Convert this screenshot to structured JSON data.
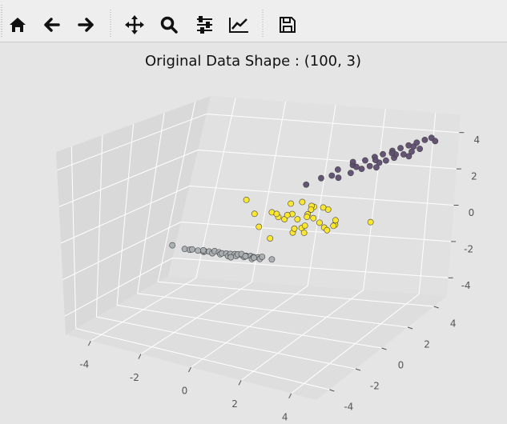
{
  "chart_data": {
    "type": "scatter3d",
    "title": "Original Data Shape : (100, 3)",
    "xlim": [
      -5,
      5
    ],
    "ylim": [
      -5,
      5
    ],
    "zlim": [
      -5,
      5
    ],
    "xticks": [
      -4,
      -2,
      0,
      2,
      4
    ],
    "yticks": [
      -4,
      -2,
      0,
      2,
      4
    ],
    "zticks": [
      -4,
      -2,
      0,
      2,
      4
    ],
    "grid": true,
    "series": [
      {
        "color": "#a9aeb1",
        "x": [
          -3.7,
          -3.2,
          -3.05,
          -2.9,
          -2.7,
          -2.55,
          -2.4,
          -2.3,
          -2.15,
          -2.05,
          -1.95,
          -1.85,
          -1.75,
          -1.65,
          -1.55,
          -1.45,
          -1.35,
          -1.25,
          -1.15,
          -1.05,
          -0.95,
          -0.85,
          -0.75,
          -0.65,
          -0.55,
          -0.45,
          -0.35,
          -0.25,
          0.1,
          -1.4,
          -1.1,
          -0.9,
          -0.6,
          -2.5
        ],
        "y": [
          1.35,
          1.3,
          1.4,
          1.25,
          1.3,
          1.45,
          1.2,
          1.35,
          1.3,
          1.25,
          1.4,
          1.3,
          1.2,
          1.35,
          1.3,
          1.25,
          1.4,
          1.3,
          1.2,
          1.35,
          1.3,
          1.25,
          1.4,
          1.3,
          1.2,
          1.35,
          1.3,
          1.25,
          1.3,
          1.2,
          1.4,
          1.3,
          1.35,
          1.3
        ],
        "z": [
          -1.9,
          -2.0,
          -2.05,
          -1.95,
          -2.0,
          -2.1,
          -1.95,
          -2.0,
          -2.05,
          -1.9,
          -2.0,
          -2.05,
          -1.95,
          -2.0,
          -2.1,
          -1.95,
          -2.0,
          -2.05,
          -1.9,
          -2.0,
          -2.05,
          -1.95,
          -2.0,
          -2.1,
          -1.95,
          -2.0,
          -2.05,
          -1.9,
          -2.0,
          -2.1,
          -1.95,
          -2.0,
          -2.05,
          -1.95
        ]
      },
      {
        "color": "#fde725",
        "x": [
          -1.5,
          -0.8,
          -0.5,
          0.0,
          0.2,
          0.4,
          0.5,
          0.6,
          0.7,
          0.8,
          0.9,
          1.0,
          1.1,
          1.2,
          1.3,
          1.4,
          1.5,
          1.6,
          1.8,
          2.0,
          2.3,
          2.8,
          -0.2,
          0.3,
          0.55,
          0.75,
          0.95,
          1.15,
          1.35,
          0.1,
          -0.3,
          1.7,
          2.5
        ],
        "y": [
          2.2,
          1.5,
          2.8,
          1.2,
          2.4,
          1.8,
          3.0,
          1.0,
          2.2,
          1.6,
          2.6,
          0.9,
          2.0,
          1.4,
          2.9,
          1.1,
          2.3,
          1.7,
          0.8,
          2.1,
          1.5,
          3.2,
          2.0,
          0.6,
          1.3,
          2.7,
          1.9,
          0.7,
          2.4,
          3.3,
          0.9,
          2.6,
          0.5
        ],
        "z": [
          0.6,
          0.2,
          -0.4,
          0.5,
          0.0,
          0.8,
          -0.2,
          0.3,
          -0.6,
          0.1,
          0.4,
          -0.3,
          0.7,
          -0.1,
          0.2,
          0.5,
          -0.5,
          0.0,
          0.6,
          -0.2,
          0.3,
          -0.4,
          0.1,
          -0.6,
          0.4,
          0.2,
          -0.7,
          0.0,
          0.5,
          0.3,
          -0.2,
          -0.5,
          0.2
        ]
      },
      {
        "color": "#5f4c70",
        "x": [
          1.6,
          1.9,
          2.1,
          2.3,
          2.4,
          2.5,
          2.6,
          2.7,
          2.8,
          2.9,
          3.0,
          3.1,
          3.2,
          3.3,
          3.4,
          3.5,
          3.6,
          3.7,
          3.8,
          3.9,
          4.0,
          4.1,
          4.2,
          2.2,
          2.65,
          3.05,
          3.45,
          3.85,
          2.95,
          3.35,
          3.75,
          4.3,
          2.45
        ],
        "y": [
          0.5,
          1.0,
          1.8,
          1.5,
          2.3,
          2.0,
          2.8,
          2.4,
          3.1,
          2.6,
          3.3,
          2.9,
          3.6,
          3.0,
          3.8,
          3.2,
          4.0,
          3.5,
          4.2,
          3.7,
          4.4,
          3.9,
          4.5,
          1.2,
          2.1,
          2.7,
          3.4,
          3.9,
          3.0,
          3.3,
          3.8,
          4.6,
          2.2
        ],
        "z": [
          2.4,
          2.6,
          2.8,
          2.5,
          2.9,
          2.6,
          3.0,
          2.7,
          3.1,
          2.8,
          3.2,
          2.9,
          3.3,
          3.0,
          3.4,
          3.1,
          3.5,
          3.2,
          3.6,
          3.3,
          3.7,
          3.4,
          3.8,
          2.7,
          2.9,
          3.1,
          3.2,
          3.5,
          2.6,
          3.3,
          3.0,
          3.6,
          3.1
        ]
      }
    ]
  }
}
